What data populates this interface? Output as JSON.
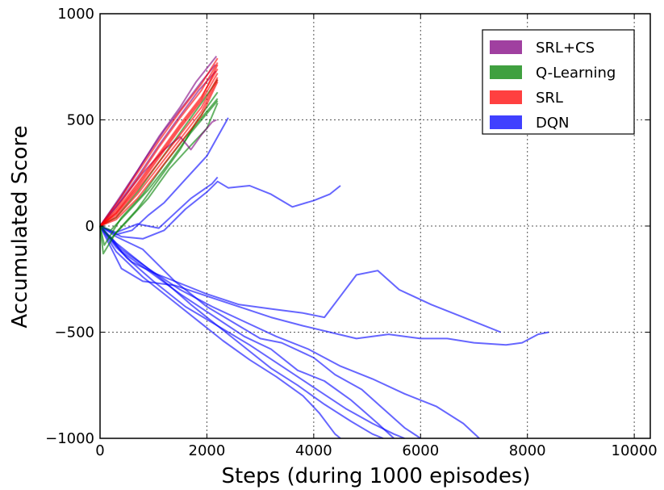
{
  "chart_data": {
    "type": "line",
    "title": "",
    "xlabel": "Steps (during 1000 episodes)",
    "ylabel": "Accumulated Score",
    "xlim": [
      0,
      10300
    ],
    "ylim": [
      -1000,
      1000
    ],
    "x_ticks": [
      "0",
      "2000",
      "4000",
      "6000",
      "8000",
      "10000"
    ],
    "y_ticks": [
      "1000",
      "500",
      "0",
      "−500",
      "−1000"
    ],
    "grid": true,
    "legend_position": "top-right",
    "series": [
      {
        "name": "SRL+CS",
        "color": "#800080",
        "runs": [
          [
            [
              0,
              0
            ],
            [
              300,
              110
            ],
            [
              700,
              260
            ],
            [
              1100,
              420
            ],
            [
              1500,
              560
            ],
            [
              1800,
              680
            ],
            [
              2180,
              800
            ]
          ],
          [
            [
              0,
              0
            ],
            [
              400,
              140
            ],
            [
              800,
              300
            ],
            [
              1200,
              450
            ],
            [
              1600,
              580
            ],
            [
              1900,
              680
            ],
            [
              2160,
              760
            ]
          ],
          [
            [
              0,
              0
            ],
            [
              300,
              90
            ],
            [
              700,
              230
            ],
            [
              1100,
              380
            ],
            [
              1500,
              520
            ],
            [
              1850,
              640
            ],
            [
              2170,
              730
            ]
          ],
          [
            [
              0,
              0
            ],
            [
              400,
              120
            ],
            [
              800,
              250
            ],
            [
              1200,
              360
            ],
            [
              1500,
              420
            ],
            [
              1700,
              360
            ],
            [
              1900,
              430
            ],
            [
              2100,
              490
            ],
            [
              2180,
              500
            ]
          ]
        ]
      },
      {
        "name": "Q-Learning",
        "color": "#008000",
        "runs": [
          [
            [
              0,
              0
            ],
            [
              60,
              -130
            ],
            [
              300,
              -30
            ],
            [
              700,
              80
            ],
            [
              1100,
              220
            ],
            [
              1500,
              360
            ],
            [
              1800,
              490
            ],
            [
              2200,
              630
            ]
          ],
          [
            [
              0,
              0
            ],
            [
              80,
              -90
            ],
            [
              400,
              40
            ],
            [
              800,
              150
            ],
            [
              1200,
              290
            ],
            [
              1600,
              420
            ],
            [
              2000,
              540
            ],
            [
              2200,
              600
            ]
          ],
          [
            [
              0,
              0
            ],
            [
              200,
              -20
            ],
            [
              500,
              60
            ],
            [
              900,
              170
            ],
            [
              1300,
              300
            ],
            [
              1700,
              440
            ],
            [
              2200,
              590
            ]
          ],
          [
            [
              0,
              0
            ],
            [
              300,
              40
            ],
            [
              700,
              160
            ],
            [
              1100,
              300
            ],
            [
              1500,
              440
            ],
            [
              1900,
              580
            ],
            [
              2200,
              690
            ]
          ],
          [
            [
              0,
              0
            ],
            [
              200,
              -60
            ],
            [
              500,
              20
            ],
            [
              900,
              130
            ],
            [
              1300,
              270
            ],
            [
              1700,
              380
            ],
            [
              2000,
              460
            ],
            [
              2200,
              580
            ]
          ]
        ]
      },
      {
        "name": "SRL",
        "color": "#ff0000",
        "runs": [
          [
            [
              0,
              0
            ],
            [
              300,
              100
            ],
            [
              700,
              250
            ],
            [
              1100,
              400
            ],
            [
              1500,
              540
            ],
            [
              1900,
              670
            ],
            [
              2200,
              790
            ]
          ],
          [
            [
              0,
              0
            ],
            [
              300,
              80
            ],
            [
              700,
              220
            ],
            [
              1100,
              370
            ],
            [
              1500,
              510
            ],
            [
              1900,
              640
            ],
            [
              2200,
              770
            ]
          ],
          [
            [
              0,
              0
            ],
            [
              300,
              70
            ],
            [
              700,
              200
            ],
            [
              1100,
              340
            ],
            [
              1500,
              480
            ],
            [
              1900,
              610
            ],
            [
              2200,
              740
            ]
          ],
          [
            [
              0,
              0
            ],
            [
              300,
              60
            ],
            [
              700,
              180
            ],
            [
              1100,
              320
            ],
            [
              1500,
              460
            ],
            [
              1900,
              590
            ],
            [
              2200,
              720
            ]
          ],
          [
            [
              0,
              0
            ],
            [
              300,
              50
            ],
            [
              700,
              170
            ],
            [
              1100,
              300
            ],
            [
              1500,
              430
            ],
            [
              1900,
              560
            ],
            [
              2200,
              700
            ]
          ],
          [
            [
              0,
              0
            ],
            [
              300,
              40
            ],
            [
              700,
              150
            ],
            [
              1100,
              280
            ],
            [
              1500,
              410
            ],
            [
              1900,
              540
            ],
            [
              2200,
              690
            ]
          ],
          [
            [
              0,
              0
            ],
            [
              300,
              30
            ],
            [
              700,
              130
            ],
            [
              1100,
              260
            ],
            [
              1500,
              390
            ],
            [
              1900,
              520
            ],
            [
              2200,
              680
            ]
          ],
          [
            [
              0,
              0
            ],
            [
              300,
              60
            ],
            [
              700,
              190
            ],
            [
              1100,
              330
            ],
            [
              1500,
              470
            ],
            [
              1900,
              600
            ],
            [
              2200,
              760
            ]
          ]
        ]
      },
      {
        "name": "DQN",
        "color": "#0000ff",
        "runs": [
          [
            [
              0,
              0
            ],
            [
              300,
              -40
            ],
            [
              600,
              -20
            ],
            [
              900,
              50
            ],
            [
              1200,
              110
            ],
            [
              1600,
              220
            ],
            [
              2000,
              330
            ],
            [
              2400,
              510
            ]
          ],
          [
            [
              0,
              0
            ],
            [
              300,
              -30
            ],
            [
              700,
              10
            ],
            [
              1100,
              -10
            ],
            [
              1400,
              60
            ],
            [
              1700,
              130
            ],
            [
              2100,
              200
            ],
            [
              2200,
              230
            ]
          ],
          [
            [
              0,
              0
            ],
            [
              400,
              -50
            ],
            [
              800,
              -60
            ],
            [
              1200,
              -20
            ],
            [
              1600,
              80
            ],
            [
              2000,
              160
            ],
            [
              2200,
              210
            ],
            [
              2400,
              180
            ],
            [
              2800,
              190
            ],
            [
              3200,
              150
            ],
            [
              3600,
              90
            ],
            [
              4000,
              120
            ],
            [
              4300,
              150
            ],
            [
              4500,
              190
            ]
          ],
          [
            [
              0,
              0
            ],
            [
              300,
              -100
            ],
            [
              600,
              -170
            ],
            [
              1000,
              -220
            ],
            [
              1500,
              -270
            ],
            [
              2000,
              -320
            ],
            [
              2600,
              -370
            ],
            [
              3200,
              -390
            ],
            [
              3800,
              -410
            ],
            [
              4200,
              -430
            ],
            [
              4500,
              -330
            ],
            [
              4800,
              -230
            ],
            [
              5200,
              -210
            ],
            [
              5600,
              -300
            ],
            [
              6200,
              -370
            ],
            [
              6800,
              -430
            ],
            [
              7200,
              -470
            ],
            [
              7500,
              -500
            ]
          ],
          [
            [
              0,
              0
            ],
            [
              400,
              -200
            ],
            [
              800,
              -260
            ],
            [
              1400,
              -280
            ],
            [
              2000,
              -330
            ],
            [
              2600,
              -380
            ],
            [
              3200,
              -430
            ],
            [
              3800,
              -470
            ],
            [
              4300,
              -500
            ],
            [
              4800,
              -530
            ],
            [
              5400,
              -510
            ],
            [
              6000,
              -530
            ],
            [
              6500,
              -530
            ],
            [
              7000,
              -550
            ],
            [
              7600,
              -560
            ],
            [
              7900,
              -550
            ],
            [
              8200,
              -510
            ],
            [
              8400,
              -500
            ]
          ],
          [
            [
              0,
              0
            ],
            [
              300,
              -50
            ],
            [
              800,
              -110
            ],
            [
              1400,
              -260
            ],
            [
              2000,
              -380
            ],
            [
              2600,
              -470
            ],
            [
              3000,
              -530
            ],
            [
              3400,
              -550
            ],
            [
              4000,
              -620
            ],
            [
              4400,
              -700
            ],
            [
              4900,
              -770
            ],
            [
              5300,
              -860
            ],
            [
              5700,
              -950
            ],
            [
              6000,
              -1000
            ]
          ],
          [
            [
              0,
              0
            ],
            [
              400,
              -120
            ],
            [
              900,
              -210
            ],
            [
              1500,
              -320
            ],
            [
              2100,
              -420
            ],
            [
              2700,
              -520
            ],
            [
              3200,
              -580
            ],
            [
              3700,
              -680
            ],
            [
              4200,
              -730
            ],
            [
              4700,
              -820
            ],
            [
              5200,
              -930
            ],
            [
              5500,
              -1000
            ]
          ],
          [
            [
              0,
              0
            ],
            [
              300,
              -80
            ],
            [
              700,
              -160
            ],
            [
              1200,
              -260
            ],
            [
              1700,
              -370
            ],
            [
              2200,
              -470
            ],
            [
              2700,
              -570
            ],
            [
              3200,
              -670
            ],
            [
              3700,
              -750
            ],
            [
              4200,
              -840
            ],
            [
              4700,
              -920
            ],
            [
              5100,
              -980
            ],
            [
              5300,
              -1000
            ]
          ],
          [
            [
              0,
              0
            ],
            [
              400,
              -110
            ],
            [
              900,
              -200
            ],
            [
              1500,
              -300
            ],
            [
              2100,
              -380
            ],
            [
              2700,
              -450
            ],
            [
              3300,
              -520
            ],
            [
              3900,
              -580
            ],
            [
              4500,
              -660
            ],
            [
              5100,
              -720
            ],
            [
              5700,
              -790
            ],
            [
              6300,
              -850
            ],
            [
              6800,
              -930
            ],
            [
              7100,
              -1000
            ]
          ],
          [
            [
              0,
              0
            ],
            [
              300,
              -120
            ],
            [
              800,
              -240
            ],
            [
              1300,
              -340
            ],
            [
              1800,
              -440
            ],
            [
              2300,
              -540
            ],
            [
              2800,
              -630
            ],
            [
              3300,
              -710
            ],
            [
              3800,
              -800
            ],
            [
              4100,
              -880
            ],
            [
              4400,
              -980
            ],
            [
              4500,
              -1000
            ]
          ],
          [
            [
              0,
              0
            ],
            [
              500,
              -150
            ],
            [
              1000,
              -260
            ],
            [
              1600,
              -380
            ],
            [
              2200,
              -470
            ],
            [
              2800,
              -560
            ],
            [
              3400,
              -660
            ],
            [
              4000,
              -760
            ],
            [
              4600,
              -860
            ],
            [
              5100,
              -930
            ],
            [
              5500,
              -980
            ],
            [
              5700,
              -1000
            ]
          ]
        ]
      }
    ]
  }
}
